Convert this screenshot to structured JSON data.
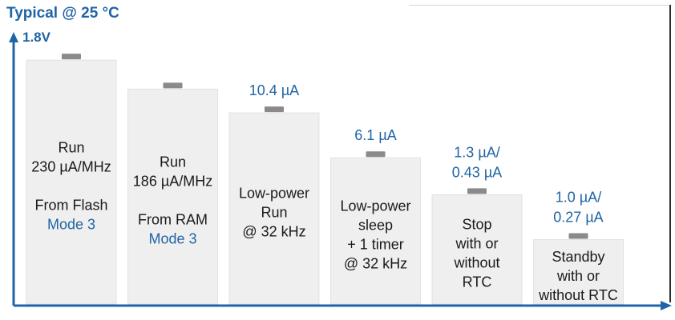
{
  "header": {
    "title": "Typical @ 25 °C"
  },
  "chart_data": {
    "type": "bar",
    "title": "Typical @ 25 °C",
    "y_axis_label": "1.8V",
    "colors": {
      "axis": "#1f64a6",
      "bar": "#efefef",
      "bar_edge": "#e2e2e2",
      "cap": "#8a8a8a",
      "text": "#1a1a1a",
      "value": "#1f64a6"
    },
    "bars": [
      {
        "level": 0.93,
        "lines": [
          {
            "text": "Run"
          },
          {
            "text": "230 µA/MHz"
          },
          {
            "text": ""
          },
          {
            "text": "From Flash"
          },
          {
            "text": "Mode 3",
            "accent": true
          }
        ]
      },
      {
        "level": 0.82,
        "lines": [
          {
            "text": "Run"
          },
          {
            "text": "186 µA/MHz"
          },
          {
            "text": ""
          },
          {
            "text": "From RAM"
          },
          {
            "text": "Mode 3",
            "accent": true
          }
        ]
      },
      {
        "level": 0.73,
        "value_lines": [
          "10.4 µA"
        ],
        "lines": [
          {
            "text": "Low-power"
          },
          {
            "text": "Run"
          },
          {
            "text": "@ 32 kHz"
          }
        ]
      },
      {
        "level": 0.56,
        "value_lines": [
          "6.1 µA"
        ],
        "lines": [
          {
            "text": "Low-power"
          },
          {
            "text": "sleep"
          },
          {
            "text": "+ 1 timer"
          },
          {
            "text": "@ 32 kHz"
          }
        ]
      },
      {
        "level": 0.42,
        "value_lines": [
          "1.3 µA/",
          "0.43 µA"
        ],
        "lines": [
          {
            "text": "Stop"
          },
          {
            "text": "with or"
          },
          {
            "text": "without"
          },
          {
            "text": "RTC"
          }
        ]
      },
      {
        "level": 0.25,
        "value_lines": [
          "1.0 µA/",
          "0.27 µA"
        ],
        "lines": [
          {
            "text": "Standby"
          },
          {
            "text": "with or"
          },
          {
            "text": "without RTC"
          }
        ]
      }
    ]
  }
}
